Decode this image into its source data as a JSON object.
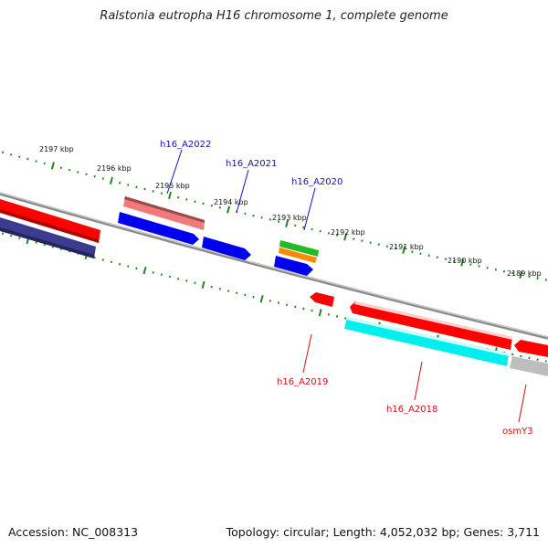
{
  "title": "Ralstonia eutropha H16 chromosome 1, complete genome",
  "footer": {
    "accession": "Accession: NC_008313",
    "summary": "Topology: circular; Length: 4,052,032 bp; Genes: 3,711"
  },
  "colors": {
    "backbone": "#8a8a8a",
    "tick": "#1c8a1c",
    "plus_label": "#1010c8",
    "minus_label": "#d01010"
  },
  "ruler_labels": [
    "2197 kbp",
    "2196 kbp",
    "2195 kbp",
    "2194 kbp",
    "2193 kbp",
    "2192 kbp",
    "2191 kbp",
    "2190 kbp",
    "2189 kbp"
  ],
  "gene_labels": {
    "plus": [
      "h16_A2022",
      "h16_A2021",
      "h16_A2020"
    ],
    "minus": [
      "h16_A2019",
      "h16_A2018",
      "osmY3"
    ]
  },
  "features": [
    {
      "name": "feature-red-left",
      "color": "#ff0000"
    },
    {
      "name": "feature-navy-left",
      "color": "#3b3b8f"
    },
    {
      "name": "feature-pink",
      "color": "#f07a7a"
    },
    {
      "name": "feature-blue-h16-a2022",
      "color": "#0000ee"
    },
    {
      "name": "feature-blue-h16-a2021",
      "color": "#0000ee"
    },
    {
      "name": "feature-green",
      "color": "#22bb22"
    },
    {
      "name": "feature-orange",
      "color": "#ff8800"
    },
    {
      "name": "feature-blue-h16-a2020",
      "color": "#0000ee"
    },
    {
      "name": "feature-red-h16-a2019",
      "color": "#ff0000"
    },
    {
      "name": "feature-red-long",
      "color": "#ff0000"
    },
    {
      "name": "feature-cyan-h16-a2018",
      "color": "#00eeee"
    },
    {
      "name": "feature-red-right",
      "color": "#ff0000"
    },
    {
      "name": "feature-gray-osmy3",
      "color": "#bdbdbd"
    }
  ]
}
